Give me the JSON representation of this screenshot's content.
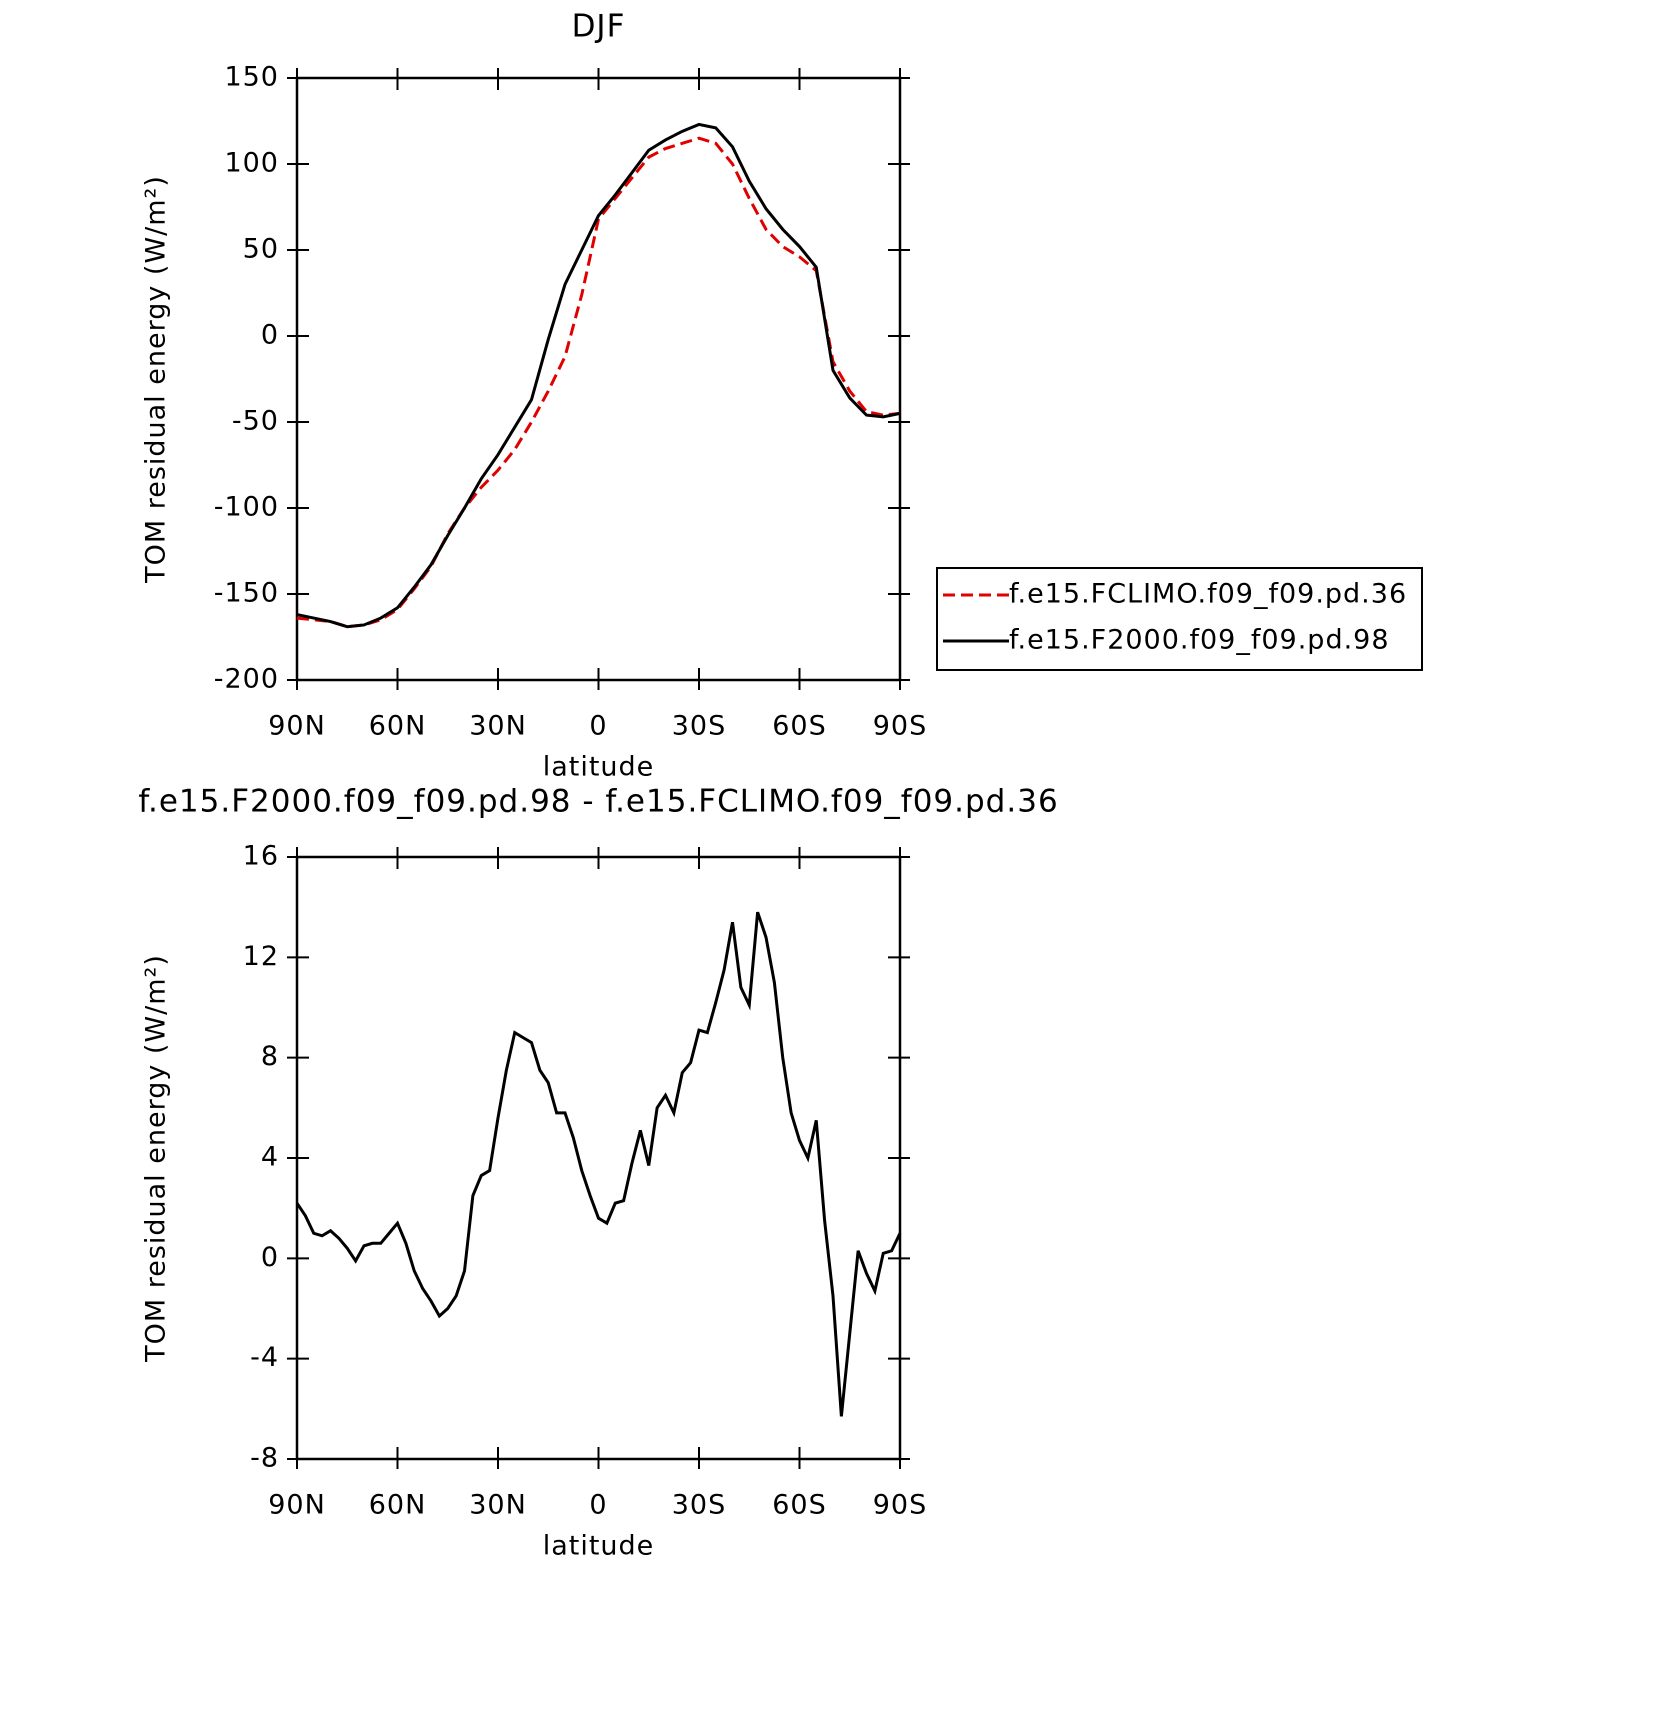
{
  "chart_data": [
    {
      "type": "line",
      "title": "DJF",
      "xlabel": "latitude",
      "ylabel": "TOM residual energy (W/m²)",
      "x": [
        90,
        85,
        80,
        75,
        70,
        65,
        60,
        55,
        50,
        45,
        40,
        35,
        30,
        25,
        20,
        15,
        10,
        5,
        0,
        -5,
        -10,
        -15,
        -20,
        -25,
        -30,
        -35,
        -40,
        -45,
        -50,
        -55,
        -60,
        -65,
        -70,
        -75,
        -80,
        -85,
        -90
      ],
      "series": [
        {
          "name": "f.e15.FCLIMO.f09_f09.pd.36",
          "color": "#e00000",
          "dash": true,
          "values": [
            -164,
            -165,
            -166,
            -169,
            -168,
            -165,
            -159,
            -147,
            -134,
            -115,
            -100,
            -88,
            -78,
            -66,
            -50,
            -32,
            -12,
            24,
            68,
            80,
            92,
            104,
            109,
            112,
            115,
            112,
            100,
            80,
            62,
            52,
            46,
            38,
            -15,
            -32,
            -44,
            -46,
            -45
          ]
        },
        {
          "name": "f.e15.F2000.f09_f09.pd.98",
          "color": "#000000",
          "dash": false,
          "values": [
            -162,
            -164,
            -166,
            -169,
            -168,
            -164,
            -158,
            -146,
            -133,
            -116,
            -100,
            -83,
            -69,
            -53,
            -37,
            -2,
            30,
            50,
            70,
            82,
            95,
            108,
            114,
            119,
            123,
            121,
            110,
            90,
            74,
            62,
            52,
            40,
            -20,
            -36,
            -46,
            -47,
            -45
          ]
        }
      ],
      "xlim": [
        90,
        -90
      ],
      "xticks": [
        {
          "value": 90,
          "label": "90N"
        },
        {
          "value": 60,
          "label": "60N"
        },
        {
          "value": 30,
          "label": "30N"
        },
        0,
        {
          "value": -30,
          "label": "30S"
        },
        {
          "value": -60,
          "label": "60S"
        },
        {
          "value": -90,
          "label": "90S"
        }
      ],
      "ylim": [
        -200,
        150
      ],
      "yticks": [
        -200,
        -150,
        -100,
        -50,
        0,
        50,
        100,
        150
      ],
      "legend": "right"
    },
    {
      "type": "line",
      "title": "f.e15.F2000.f09_f09.pd.98 - f.e15.FCLIMO.f09_f09.pd.36",
      "xlabel": "latitude",
      "ylabel": "TOM residual energy (W/m²)",
      "x": [
        90,
        87.5,
        85,
        82.5,
        80,
        77.5,
        75,
        72.5,
        70,
        67.5,
        65,
        62.5,
        60,
        57.5,
        55,
        52.5,
        50,
        47.5,
        45,
        42.5,
        40,
        37.5,
        35,
        32.5,
        30,
        27.5,
        25,
        22.5,
        20,
        17.5,
        15,
        12.5,
        10,
        7.5,
        5,
        2.5,
        0,
        -2.5,
        -5,
        -7.5,
        -10,
        -12.5,
        -15,
        -17.5,
        -20,
        -22.5,
        -25,
        -27.5,
        -30,
        -32.5,
        -35,
        -37.5,
        -40,
        -42.5,
        -45,
        -47.5,
        -50,
        -52.5,
        -55,
        -57.5,
        -60,
        -62.5,
        -65,
        -67.5,
        -70,
        -72.5,
        -75,
        -77.5,
        -80,
        -82.5,
        -85,
        -87.5,
        -90
      ],
      "series": [
        {
          "color": "#000000",
          "dash": false,
          "values": [
            2.2,
            1.7,
            1.0,
            0.9,
            1.1,
            0.8,
            0.4,
            -0.1,
            0.5,
            0.6,
            0.6,
            1.0,
            1.4,
            0.6,
            -0.5,
            -1.2,
            -1.7,
            -2.3,
            -2.0,
            -1.5,
            -0.5,
            2.5,
            3.3,
            3.5,
            5.6,
            7.5,
            9.0,
            8.8,
            8.6,
            7.5,
            7.0,
            5.8,
            5.8,
            4.8,
            3.5,
            2.5,
            1.6,
            1.4,
            2.2,
            2.3,
            3.8,
            5.1,
            3.7,
            6.0,
            6.5,
            5.8,
            7.4,
            7.8,
            9.1,
            9.0,
            10.2,
            11.5,
            13.4,
            10.8,
            10.1,
            13.8,
            12.8,
            11.0,
            8.0,
            5.8,
            4.7,
            4.0,
            5.5,
            1.5,
            -1.5,
            -6.3,
            -3.0,
            0.3,
            -0.6,
            -1.3,
            0.2,
            0.3,
            1.0
          ]
        }
      ],
      "xlim": [
        90,
        -90
      ],
      "xticks": [
        {
          "value": 90,
          "label": "90N"
        },
        {
          "value": 60,
          "label": "60N"
        },
        {
          "value": 30,
          "label": "30N"
        },
        0,
        {
          "value": -30,
          "label": "30S"
        },
        {
          "value": -60,
          "label": "60S"
        },
        {
          "value": -90,
          "label": "90S"
        }
      ],
      "ylim": [
        -8,
        16
      ],
      "yticks": [
        -8,
        -4,
        0,
        4,
        8,
        12,
        16
      ]
    }
  ]
}
